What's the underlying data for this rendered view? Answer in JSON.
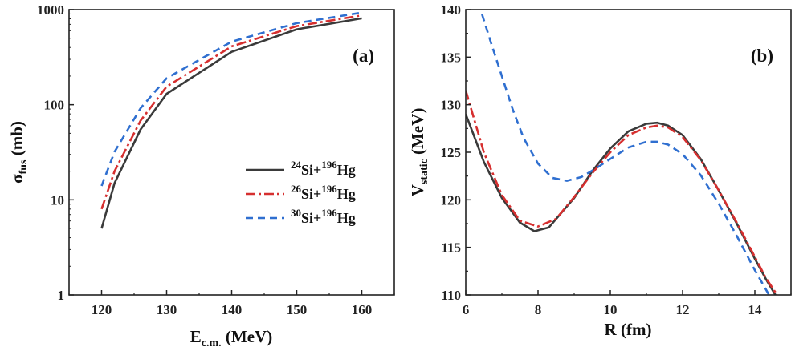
{
  "chart_data": [
    {
      "type": "line",
      "panel_label": "(a)",
      "xlabel": {
        "main": "E",
        "sub": "c.m.",
        "unit": " (MeV)"
      },
      "ylabel": {
        "main": "σ",
        "sub": "fus",
        "unit": " (mb)"
      },
      "xlim": [
        115,
        165
      ],
      "ylim": [
        1,
        1000
      ],
      "y_scale": "log",
      "x_ticks": [
        "120",
        "130",
        "140",
        "150",
        "160"
      ],
      "y_ticks": [
        "1",
        "10",
        "100",
        "1000"
      ],
      "legend_position": "center-right",
      "series": [
        {
          "name_parts": [
            "24",
            "Si+",
            "196",
            "Hg"
          ],
          "color": "#3a3a3a",
          "dash": "solid",
          "x": [
            120,
            122,
            126,
            130,
            140,
            150,
            160
          ],
          "y": [
            5,
            15,
            55,
            130,
            360,
            620,
            810
          ]
        },
        {
          "name_parts": [
            "26",
            "Si+",
            "196",
            "Hg"
          ],
          "color": "#d62f2f",
          "dash": "dashdot",
          "x": [
            120,
            122,
            126,
            130,
            140,
            150,
            160
          ],
          "y": [
            8,
            20,
            68,
            155,
            410,
            670,
            870
          ]
        },
        {
          "name_parts": [
            "30",
            "Si+",
            "196",
            "Hg"
          ],
          "color": "#2f6fd0",
          "dash": "dashed",
          "x": [
            120,
            122,
            126,
            130,
            140,
            150,
            160
          ],
          "y": [
            14,
            32,
            92,
            190,
            460,
            720,
            930
          ]
        }
      ]
    },
    {
      "type": "line",
      "panel_label": "(b)",
      "xlabel": {
        "main": "R",
        "sub": "",
        "unit": " (fm)"
      },
      "ylabel": {
        "main": "V",
        "sub": "static",
        "unit": " (MeV)"
      },
      "xlim": [
        6,
        15
      ],
      "ylim": [
        110,
        140
      ],
      "x_ticks": [
        "6",
        "8",
        "10",
        "12",
        "14"
      ],
      "y_ticks": [
        "110",
        "115",
        "120",
        "125",
        "130",
        "135",
        "140"
      ],
      "series": [
        {
          "color": "#3a3a3a",
          "dash": "solid",
          "x": [
            6.0,
            6.5,
            7.0,
            7.5,
            7.9,
            8.3,
            9.0,
            9.5,
            10.0,
            10.5,
            11.0,
            11.3,
            11.6,
            12.0,
            12.5,
            13.0,
            13.5,
            14.0,
            14.3,
            14.6
          ],
          "y": [
            129.0,
            124.0,
            120.2,
            117.6,
            116.7,
            117.1,
            120.2,
            123.0,
            125.4,
            127.2,
            128.0,
            128.1,
            127.8,
            126.8,
            124.3,
            121.0,
            117.5,
            113.8,
            111.7,
            109.8
          ]
        },
        {
          "color": "#d62f2f",
          "dash": "dashdot",
          "x": [
            6.0,
            6.5,
            7.0,
            7.5,
            8.0,
            8.5,
            9.0,
            9.5,
            10.0,
            10.5,
            11.0,
            11.3,
            11.6,
            12.0,
            12.5,
            13.0,
            13.5,
            14.0,
            14.3,
            14.65
          ],
          "y": [
            131.5,
            125.0,
            120.5,
            117.8,
            117.2,
            118.0,
            120.3,
            122.8,
            125.0,
            126.8,
            127.6,
            127.8,
            127.6,
            126.6,
            124.2,
            121.0,
            117.6,
            114.0,
            111.8,
            109.8
          ]
        },
        {
          "color": "#2f6fd0",
          "dash": "dashed",
          "x": [
            6.45,
            6.7,
            7.0,
            7.3,
            7.6,
            8.0,
            8.4,
            8.8,
            9.2,
            9.6,
            10.0,
            10.5,
            11.0,
            11.3,
            11.6,
            12.0,
            12.5,
            13.0,
            13.5,
            14.0,
            14.45
          ],
          "y": [
            139.5,
            136.5,
            133.0,
            129.5,
            126.5,
            123.8,
            122.3,
            122.0,
            122.4,
            123.3,
            124.3,
            125.5,
            126.1,
            126.1,
            125.8,
            124.8,
            122.6,
            119.6,
            116.2,
            112.6,
            109.6
          ]
        }
      ]
    }
  ]
}
